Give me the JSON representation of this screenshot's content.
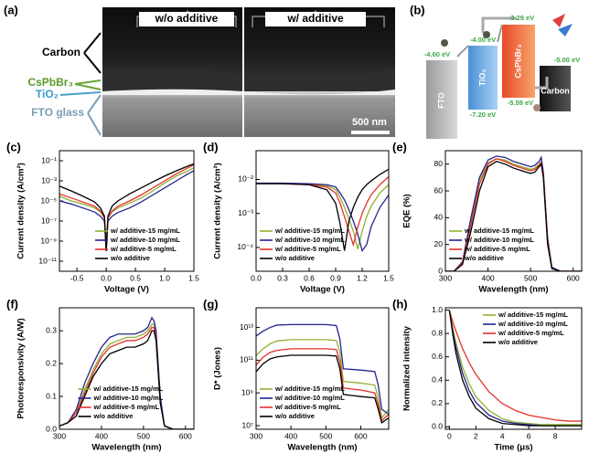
{
  "figure_a": {
    "label": "(a)",
    "headers": [
      "w/o additive",
      "w/ additive"
    ],
    "layers": [
      "Carbon",
      "CsPbBr₃",
      "TiO₂",
      "FTO glass"
    ],
    "scale_bar": "500 nm"
  },
  "figure_b": {
    "label": "(b)",
    "blocks": [
      {
        "name": "FTO",
        "levels": [
          "-4.60 eV"
        ]
      },
      {
        "name": "TiO₂",
        "levels": [
          "-4.00 eV",
          "-7.20 eV"
        ]
      },
      {
        "name": "CsPbBr₃",
        "levels": [
          "-3.29 eV",
          "-5.59 eV"
        ]
      },
      {
        "name": "Carbon",
        "levels": [
          "-5.00 eV"
        ]
      }
    ]
  },
  "chart_data": [
    {
      "type": "line",
      "panel_label": "(c)",
      "xlabel": "Voltage (V)",
      "ylabel": "Current density (A/cm²)",
      "yscale": "log",
      "legend": "lower right",
      "x": [
        -0.8,
        -0.6,
        -0.4,
        -0.2,
        -0.1,
        -0.03,
        0,
        0.03,
        0.1,
        0.2,
        0.4,
        0.6,
        0.8,
        1.0,
        1.2,
        1.4,
        1.5
      ],
      "xlim": [
        -0.8,
        1.5
      ],
      "xticks": [
        -0.5,
        {
          "value": 0,
          "label": "0.0"
        },
        0.5,
        {
          "value": 1,
          "label": "1.0"
        },
        1.5
      ],
      "ylim": [
        1e-12,
        1
      ],
      "yticks": [
        {
          "value": 0.1,
          "label": "10⁻¹"
        },
        {
          "value": 0.001,
          "label": "10⁻³"
        },
        {
          "value": 1e-05,
          "label": "10⁻⁵"
        },
        {
          "value": 1e-07,
          "label": "10⁻⁷"
        },
        {
          "value": 1e-09,
          "label": "10⁻⁹"
        },
        {
          "value": 1e-11,
          "label": "10⁻¹¹"
        }
      ],
      "series": [
        {
          "name": "w/ additive-15 mg/mL",
          "color": "#8fb032",
          "values": [
            3e-05,
            1e-05,
            5e-06,
            2e-06,
            8e-07,
            2e-07,
            1e-09,
            2e-07,
            8e-07,
            2e-06,
            6e-06,
            2e-05,
            0.0001,
            0.0006,
            0.003,
            0.01,
            0.02
          ]
        },
        {
          "name": "w/ additive-10 mg/mL",
          "color": "#23238f",
          "values": [
            1e-05,
            5e-06,
            2e-06,
            8e-07,
            3e-07,
            1e-07,
            1e-10,
            1e-07,
            3e-07,
            7e-07,
            2e-06,
            8e-06,
            4e-05,
            0.0002,
            0.001,
            0.005,
            0.01
          ]
        },
        {
          "name": "w/ additive-5 mg/mL",
          "color": "#e5302a",
          "values": [
            5e-05,
            2e-05,
            8e-06,
            3e-06,
            1e-06,
            2e-07,
            1e-10,
            2e-07,
            1e-06,
            3e-06,
            1e-05,
            4e-05,
            0.0002,
            0.001,
            0.005,
            0.02,
            0.04
          ]
        },
        {
          "name": "w/o additive",
          "color": "#000000",
          "values": [
            0.0003,
            0.0001,
            3e-05,
            8e-06,
            2e-06,
            3e-07,
            1e-10,
            3e-07,
            3e-06,
            1e-05,
            5e-05,
            0.0002,
            0.0008,
            0.003,
            0.01,
            0.03,
            0.05
          ]
        }
      ]
    },
    {
      "type": "line",
      "panel_label": "(d)",
      "xlabel": "Voltage (V)",
      "ylabel": "Current density (A/cm²)",
      "yscale": "log",
      "legend": "lower left",
      "x": [
        0,
        0.3,
        0.6,
        0.8,
        0.9,
        0.95,
        1.0,
        1.05,
        1.1,
        1.15,
        1.2,
        1.25,
        1.3,
        1.4,
        1.5
      ],
      "xlim": [
        0,
        1.5
      ],
      "xticks": [
        {
          "value": 0,
          "label": "0.0"
        },
        0.3,
        0.6,
        0.9,
        1.2,
        1.5
      ],
      "ylim": [
        2e-05,
        0.07
      ],
      "yticks": [
        {
          "value": 0.0001,
          "label": "10⁻⁴"
        },
        {
          "value": 0.001,
          "label": "10⁻³"
        },
        {
          "value": 0.01,
          "label": "10⁻²"
        }
      ],
      "series": [
        {
          "name": "w/ additive-15 mg/mL",
          "color": "#8fb032",
          "values": [
            0.0075,
            0.0075,
            0.0072,
            0.0065,
            0.005,
            0.003,
            0.0015,
            0.0007,
            0.0003,
            9e-05,
            0.0003,
            0.0008,
            0.0016,
            0.004,
            0.007
          ]
        },
        {
          "name": "w/ additive-10 mg/mL",
          "color": "#23238f",
          "values": [
            0.0078,
            0.0078,
            0.0075,
            0.007,
            0.006,
            0.004,
            0.0025,
            0.0013,
            0.0006,
            0.00025,
            8e-05,
            0.00012,
            0.0004,
            0.0015,
            0.0035
          ]
        },
        {
          "name": "w/ additive-5 mg/mL",
          "color": "#e5302a",
          "values": [
            0.0075,
            0.0075,
            0.007,
            0.006,
            0.004,
            0.002,
            0.0008,
            0.0003,
            0.00012,
            0.0004,
            0.001,
            0.002,
            0.0035,
            0.007,
            0.012
          ]
        },
        {
          "name": "w/o additive",
          "color": "#000000",
          "values": [
            0.0075,
            0.0075,
            0.007,
            0.005,
            0.002,
            0.0005,
            8e-05,
            0.0006,
            0.0015,
            0.003,
            0.005,
            0.007,
            0.009,
            0.014,
            0.02
          ]
        }
      ]
    },
    {
      "type": "line",
      "panel_label": "(e)",
      "xlabel": "Wavelength (nm)",
      "ylabel": "EQE (%)",
      "legend": "lower left",
      "x": [
        300,
        320,
        340,
        360,
        380,
        400,
        420,
        440,
        460,
        480,
        500,
        510,
        520,
        525,
        530,
        540,
        550,
        570,
        600,
        620
      ],
      "xlim": [
        300,
        620
      ],
      "xticks": [
        300,
        400,
        500,
        600
      ],
      "ylim": [
        0,
        90
      ],
      "yticks": [
        0,
        20,
        40,
        60,
        80
      ],
      "series": [
        {
          "name": "w/ additive-15 mg/mL",
          "color": "#8fb032",
          "values": [
            0,
            0,
            6,
            38,
            68,
            81,
            84,
            83,
            80,
            78,
            76,
            77,
            80,
            82,
            73,
            23,
            2,
            0,
            0,
            0
          ]
        },
        {
          "name": "w/ additive-10 mg/mL",
          "color": "#23238f",
          "values": [
            0,
            0,
            7,
            40,
            70,
            83,
            86,
            85,
            82,
            80,
            78,
            79,
            82,
            85,
            74,
            25,
            3,
            0,
            0,
            0
          ]
        },
        {
          "name": "w/ additive-5 mg/mL",
          "color": "#e5302a",
          "values": [
            0,
            0,
            6,
            35,
            65,
            80,
            84,
            82,
            79,
            77,
            75,
            76,
            79,
            81,
            72,
            22,
            2,
            0,
            0,
            0
          ]
        },
        {
          "name": "w/o additive",
          "color": "#000000",
          "values": [
            0,
            0,
            5,
            30,
            60,
            78,
            82,
            80,
            77,
            75,
            73,
            74,
            78,
            80,
            70,
            20,
            2,
            0,
            0,
            0
          ]
        }
      ]
    },
    {
      "type": "line",
      "panel_label": "(f)",
      "xlabel": "Wavelength (nm)",
      "ylabel": "Photoresponsivity (A/W)",
      "legend": "lower center",
      "x": [
        300,
        320,
        340,
        360,
        380,
        400,
        420,
        440,
        460,
        480,
        500,
        510,
        520,
        525,
        530,
        540,
        550,
        570,
        600,
        620
      ],
      "xlim": [
        300,
        620
      ],
      "xticks": [
        300,
        400,
        500,
        600
      ],
      "ylim": [
        0,
        0.37
      ],
      "yticks": [
        {
          "value": 0,
          "label": "0.0"
        },
        0.1,
        0.2,
        0.3
      ],
      "series": [
        {
          "name": "w/ additive-15 mg/mL",
          "color": "#8fb032",
          "values": [
            0.01,
            0.02,
            0.05,
            0.12,
            0.18,
            0.23,
            0.26,
            0.27,
            0.28,
            0.28,
            0.29,
            0.3,
            0.32,
            0.32,
            0.29,
            0.09,
            0.01,
            0,
            0,
            0
          ]
        },
        {
          "name": "w/ additive-10 mg/mL",
          "color": "#23238f",
          "values": [
            0.01,
            0.02,
            0.06,
            0.14,
            0.2,
            0.25,
            0.28,
            0.29,
            0.29,
            0.29,
            0.3,
            0.31,
            0.34,
            0.33,
            0.3,
            0.1,
            0.01,
            0,
            0,
            0
          ]
        },
        {
          "name": "w/ additive-5 mg/mL",
          "color": "#e5302a",
          "values": [
            0.01,
            0.02,
            0.05,
            0.11,
            0.17,
            0.22,
            0.25,
            0.26,
            0.27,
            0.27,
            0.28,
            0.29,
            0.31,
            0.31,
            0.28,
            0.08,
            0.01,
            0,
            0,
            0
          ]
        },
        {
          "name": "w/o additive",
          "color": "#000000",
          "values": [
            0.01,
            0.02,
            0.04,
            0.1,
            0.16,
            0.2,
            0.23,
            0.24,
            0.25,
            0.25,
            0.26,
            0.27,
            0.3,
            0.3,
            0.27,
            0.08,
            0.01,
            0,
            0,
            0
          ]
        }
      ]
    },
    {
      "type": "line",
      "panel_label": "(g)",
      "xlabel": "Wavelength (nm)",
      "ylabel": "D* (Jones)",
      "yscale": "log",
      "legend": "lower left",
      "x": [
        300,
        320,
        340,
        360,
        400,
        450,
        500,
        530,
        540,
        550,
        600,
        640,
        650,
        660,
        680
      ],
      "xlim": [
        300,
        680
      ],
      "xticks": [
        300,
        400,
        500,
        600
      ],
      "ylim": [
        6000000.0,
        160000000000000.0
      ],
      "yticks": [
        {
          "value": 10000000.0,
          "label": "10⁷"
        },
        {
          "value": 1000000000.0,
          "label": "10⁹"
        },
        {
          "value": 100000000000.0,
          "label": "10¹¹"
        },
        {
          "value": 10000000000000.0,
          "label": "10¹³"
        }
      ],
      "series": [
        {
          "name": "w/ additive-15 mg/mL",
          "color": "#8fb032",
          "values": [
            200000000000.0,
            500000000000.0,
            1000000000000.0,
            1500000000000.0,
            1800000000000.0,
            1800000000000.0,
            1800000000000.0,
            1600000000000.0,
            300000000000.0,
            5000000000.0,
            4000000000.0,
            3000000000.0,
            500000000.0,
            30000000.0,
            100000000.0
          ]
        },
        {
          "name": "w/ additive-10 mg/mL",
          "color": "#23238f",
          "values": [
            3000000000000.0,
            6000000000000.0,
            10000000000000.0,
            14000000000000.0,
            15000000000000.0,
            15000000000000.0,
            15000000000000.0,
            13000000000000.0,
            2000000000000.0,
            30000000000.0,
            25000000000.0,
            20000000000.0,
            3000000000.0,
            100000000.0,
            50000000.0
          ]
        },
        {
          "name": "w/ additive-5 mg/mL",
          "color": "#e5302a",
          "values": [
            50000000000.0,
            150000000000.0,
            300000000000.0,
            400000000000.0,
            500000000000.0,
            500000000000.0,
            500000000000.0,
            450000000000.0,
            80000000000.0,
            2000000000.0,
            1500000000.0,
            1000000000.0,
            200000000.0,
            20000000.0,
            50000000.0
          ]
        },
        {
          "name": "w/o additive",
          "color": "#000000",
          "values": [
            20000000000.0,
            60000000000.0,
            120000000000.0,
            160000000000.0,
            200000000000.0,
            200000000000.0,
            200000000000.0,
            180000000000.0,
            30000000000.0,
            800000000.0,
            600000000.0,
            500000000.0,
            100000000.0,
            15000000.0,
            30000000.0
          ]
        }
      ]
    },
    {
      "type": "line",
      "panel_label": "(h)",
      "xlabel": "Time (μs)",
      "ylabel": "Normalized intensity",
      "legend": "upper right",
      "x": [
        0,
        0.25,
        0.5,
        1,
        1.5,
        2,
        3,
        4,
        5,
        6,
        7,
        8,
        9,
        10
      ],
      "xlim": [
        -0.3,
        10
      ],
      "xticks": [
        0,
        2,
        4,
        6,
        8
      ],
      "ylim": [
        -0.02,
        1.02
      ],
      "yticks": [
        {
          "value": 0,
          "label": "0.0"
        },
        0.2,
        0.4,
        0.6,
        0.8,
        {
          "value": 1,
          "label": "1.0"
        }
      ],
      "series": [
        {
          "name": "w/ additive-15 mg/mL",
          "color": "#8fb032",
          "values": [
            1,
            0.85,
            0.72,
            0.51,
            0.37,
            0.26,
            0.14,
            0.07,
            0.04,
            0.03,
            0.02,
            0.02,
            0.02,
            0.02
          ]
        },
        {
          "name": "w/ additive-10 mg/mL",
          "color": "#23238f",
          "values": [
            1,
            0.82,
            0.68,
            0.46,
            0.31,
            0.21,
            0.1,
            0.05,
            0.03,
            0.02,
            0.01,
            0.01,
            0.01,
            0.01
          ]
        },
        {
          "name": "w/ additive-5 mg/mL",
          "color": "#e5302a",
          "values": [
            1,
            0.9,
            0.82,
            0.67,
            0.55,
            0.45,
            0.3,
            0.2,
            0.14,
            0.1,
            0.08,
            0.06,
            0.05,
            0.05
          ]
        },
        {
          "name": "w/o additive",
          "color": "#000000",
          "values": [
            1,
            0.8,
            0.63,
            0.4,
            0.26,
            0.16,
            0.07,
            0.03,
            0.02,
            0.01,
            0.01,
            0.01,
            0.01,
            0.01
          ]
        }
      ]
    }
  ]
}
